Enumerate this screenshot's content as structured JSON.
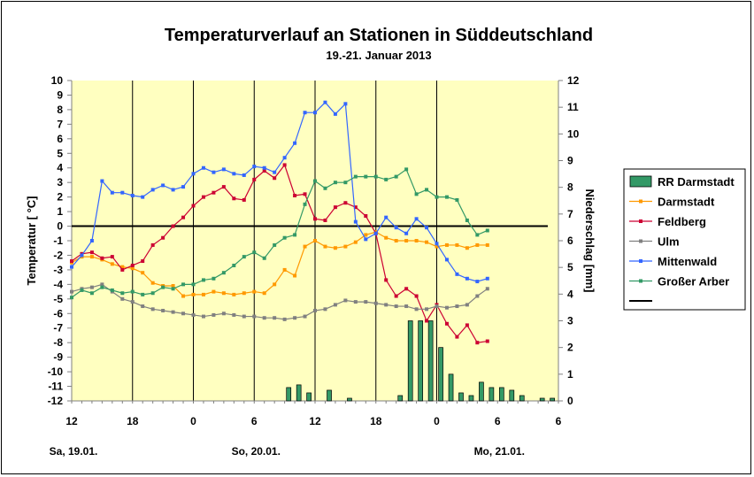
{
  "chart_data": {
    "type": "line",
    "title": "Temperaturverlauf an Stationen in Süddeutschland",
    "subtitle": "19.-21. Januar 2013",
    "ylabel": "Temperatur [ °C]",
    "y2label": "Niederschlag [mm]",
    "ylim": [
      -12,
      10
    ],
    "y2lim": [
      0,
      12
    ],
    "xlim": [
      12,
      60
    ],
    "x_unit": "hours since 19.01. 00 UTC",
    "x_ticks": [
      {
        "x": 12,
        "label": "12"
      },
      {
        "x": 18,
        "label": "18"
      },
      {
        "x": 24,
        "label": "0"
      },
      {
        "x": 30,
        "label": "6"
      },
      {
        "x": 36,
        "label": "12"
      },
      {
        "x": 42,
        "label": "18"
      },
      {
        "x": 48,
        "label": "0"
      },
      {
        "x": 54,
        "label": "6"
      }
    ],
    "date_labels": [
      "Sa, 19.01.",
      "So, 20.01.",
      "Mo, 21.01."
    ],
    "y_ticks": [
      "10",
      "9",
      "8",
      "7",
      "6",
      "5",
      "4",
      "3",
      "2",
      "1",
      "0",
      "-1",
      "-2",
      "-3",
      "-4",
      "-5",
      "-6",
      "-7",
      "-8",
      "-9",
      "-10",
      "-11",
      "-12"
    ],
    "y2_ticks": [
      "12",
      "11",
      "10",
      "9",
      "8",
      "7",
      "6",
      "5",
      "4",
      "3",
      "2",
      "1",
      "0"
    ],
    "grid": {
      "vertical_lines_at": [
        18,
        24,
        30,
        36,
        42,
        48
      ],
      "plot_background": "#ffffc0",
      "zero_line": true
    },
    "legend_placement": "right",
    "series": [
      {
        "name": "RR Darmstadt",
        "kind": "bar",
        "axis": "y2",
        "color": "#339966",
        "x": [
          33.4,
          34.4,
          35.4,
          37.4,
          39.4,
          44.4,
          45.4,
          46.4,
          47.4,
          48.4,
          49.4,
          50.4,
          51.4,
          52.4,
          53.4,
          54.4,
          55.4,
          56.4,
          58.4,
          59.4,
          60.4
        ],
        "values": [
          0.5,
          0.6,
          0.3,
          0.4,
          0.1,
          0.2,
          3.0,
          3.0,
          3.0,
          2.0,
          1.0,
          0.3,
          0.2,
          0.7,
          0.5,
          0.5,
          0.4,
          0.2,
          0.1,
          0.1,
          0.0
        ]
      },
      {
        "name": "Darmstadt",
        "kind": "line",
        "color": "#ff9900",
        "x": [
          12,
          13,
          14,
          15,
          16,
          17,
          18,
          19,
          20,
          21,
          22,
          23,
          24,
          25,
          26,
          27,
          28,
          29,
          30,
          31,
          32,
          33,
          34,
          35,
          36,
          37,
          38,
          39,
          40,
          41,
          42,
          43,
          44,
          45,
          46,
          47,
          48,
          49,
          50,
          51,
          52,
          53
        ],
        "values": [
          -2.5,
          -2.1,
          -2.1,
          -2.3,
          -2.6,
          -2.8,
          -2.9,
          -3.2,
          -3.9,
          -4.1,
          -4.1,
          -4.8,
          -4.7,
          -4.7,
          -4.5,
          -4.6,
          -4.7,
          -4.6,
          -4.5,
          -4.6,
          -4.0,
          -3.0,
          -3.4,
          -1.4,
          -1.0,
          -1.4,
          -1.5,
          -1.4,
          -1.1,
          -0.6,
          -0.4,
          -0.8,
          -1.0,
          -1.0,
          -1.0,
          -1.1,
          -1.4,
          -1.3,
          -1.3,
          -1.5,
          -1.3,
          -1.3
        ]
      },
      {
        "name": "Feldberg",
        "kind": "line",
        "color": "#cc0033",
        "x": [
          12,
          13,
          14,
          15,
          16,
          17,
          18,
          19,
          20,
          21,
          22,
          23,
          24,
          25,
          26,
          27,
          28,
          29,
          30,
          31,
          32,
          33,
          34,
          35,
          36,
          37,
          38,
          39,
          40,
          41,
          42,
          43,
          44,
          45,
          46,
          47,
          48,
          49,
          50,
          51,
          52,
          53
        ],
        "values": [
          -2.4,
          -1.9,
          -1.8,
          -2.2,
          -2.1,
          -3.0,
          -2.7,
          -2.4,
          -1.3,
          -0.8,
          0.0,
          0.6,
          1.4,
          2.0,
          2.3,
          2.7,
          1.9,
          1.8,
          3.2,
          3.8,
          3.3,
          4.2,
          2.1,
          2.2,
          0.5,
          0.4,
          1.3,
          1.6,
          1.3,
          0.7,
          -0.5,
          -3.7,
          -4.8,
          -4.3,
          -4.8,
          -6.5,
          -5.4,
          -6.7,
          -7.6,
          -6.8,
          -8.0,
          -7.9
        ]
      },
      {
        "name": "Ulm",
        "kind": "line",
        "color": "#808080",
        "x": [
          12,
          13,
          14,
          15,
          16,
          17,
          18,
          19,
          20,
          21,
          22,
          23,
          24,
          25,
          26,
          27,
          28,
          29,
          30,
          31,
          32,
          33,
          34,
          35,
          36,
          37,
          38,
          39,
          40,
          41,
          42,
          43,
          44,
          45,
          46,
          47,
          48,
          49,
          50,
          51,
          52,
          53
        ],
        "values": [
          -4.5,
          -4.3,
          -4.2,
          -4.0,
          -4.5,
          -5.0,
          -5.2,
          -5.5,
          -5.7,
          -5.8,
          -5.9,
          -6.0,
          -6.1,
          -6.2,
          -6.1,
          -6.0,
          -6.1,
          -6.2,
          -6.2,
          -6.3,
          -6.3,
          -6.4,
          -6.3,
          -6.2,
          -5.8,
          -5.7,
          -5.4,
          -5.1,
          -5.2,
          -5.2,
          -5.3,
          -5.4,
          -5.5,
          -5.5,
          -5.7,
          -5.7,
          -5.5,
          -5.6,
          -5.5,
          -5.4,
          -4.8,
          -4.3
        ]
      },
      {
        "name": "Mittenwald",
        "kind": "line",
        "color": "#3366ff",
        "x": [
          12,
          13,
          14,
          15,
          16,
          17,
          18,
          19,
          20,
          21,
          22,
          23,
          24,
          25,
          26,
          27,
          28,
          29,
          30,
          31,
          32,
          33,
          34,
          35,
          36,
          37,
          38,
          39,
          40,
          41,
          42,
          43,
          44,
          45,
          46,
          47,
          48,
          49,
          50,
          51,
          52,
          53
        ],
        "values": [
          -2.8,
          -2.0,
          -1.0,
          3.1,
          2.3,
          2.3,
          2.1,
          2.0,
          2.5,
          2.8,
          2.5,
          2.7,
          3.6,
          4.0,
          3.7,
          3.9,
          3.6,
          3.5,
          4.1,
          4.0,
          3.7,
          4.7,
          5.7,
          7.8,
          7.8,
          8.5,
          7.7,
          8.4,
          0.3,
          -0.9,
          -0.5,
          0.6,
          -0.1,
          -0.5,
          0.5,
          -0.1,
          -1.2,
          -2.3,
          -3.3,
          -3.6,
          -3.8,
          -3.6
        ]
      },
      {
        "name": "Großer Arber",
        "kind": "line",
        "color": "#339966",
        "x": [
          12,
          13,
          14,
          15,
          16,
          17,
          18,
          19,
          20,
          21,
          22,
          23,
          24,
          25,
          26,
          27,
          28,
          29,
          30,
          31,
          32,
          33,
          34,
          35,
          36,
          37,
          38,
          39,
          40,
          41,
          42,
          43,
          44,
          45,
          46,
          47,
          48,
          49,
          50,
          51,
          52,
          53
        ],
        "values": [
          -4.9,
          -4.4,
          -4.6,
          -4.2,
          -4.4,
          -4.6,
          -4.5,
          -4.7,
          -4.6,
          -4.2,
          -4.3,
          -4.0,
          -4.0,
          -3.7,
          -3.6,
          -3.2,
          -2.7,
          -2.1,
          -1.8,
          -2.2,
          -1.3,
          -0.8,
          -0.6,
          1.5,
          3.1,
          2.6,
          3.0,
          3.0,
          3.4,
          3.4,
          3.4,
          3.2,
          3.4,
          3.9,
          2.2,
          2.5,
          2.0,
          2.0,
          1.8,
          0.4,
          -0.6,
          -0.3
        ]
      }
    ],
    "reference_line": {
      "y": 0,
      "color": "#000000"
    }
  }
}
